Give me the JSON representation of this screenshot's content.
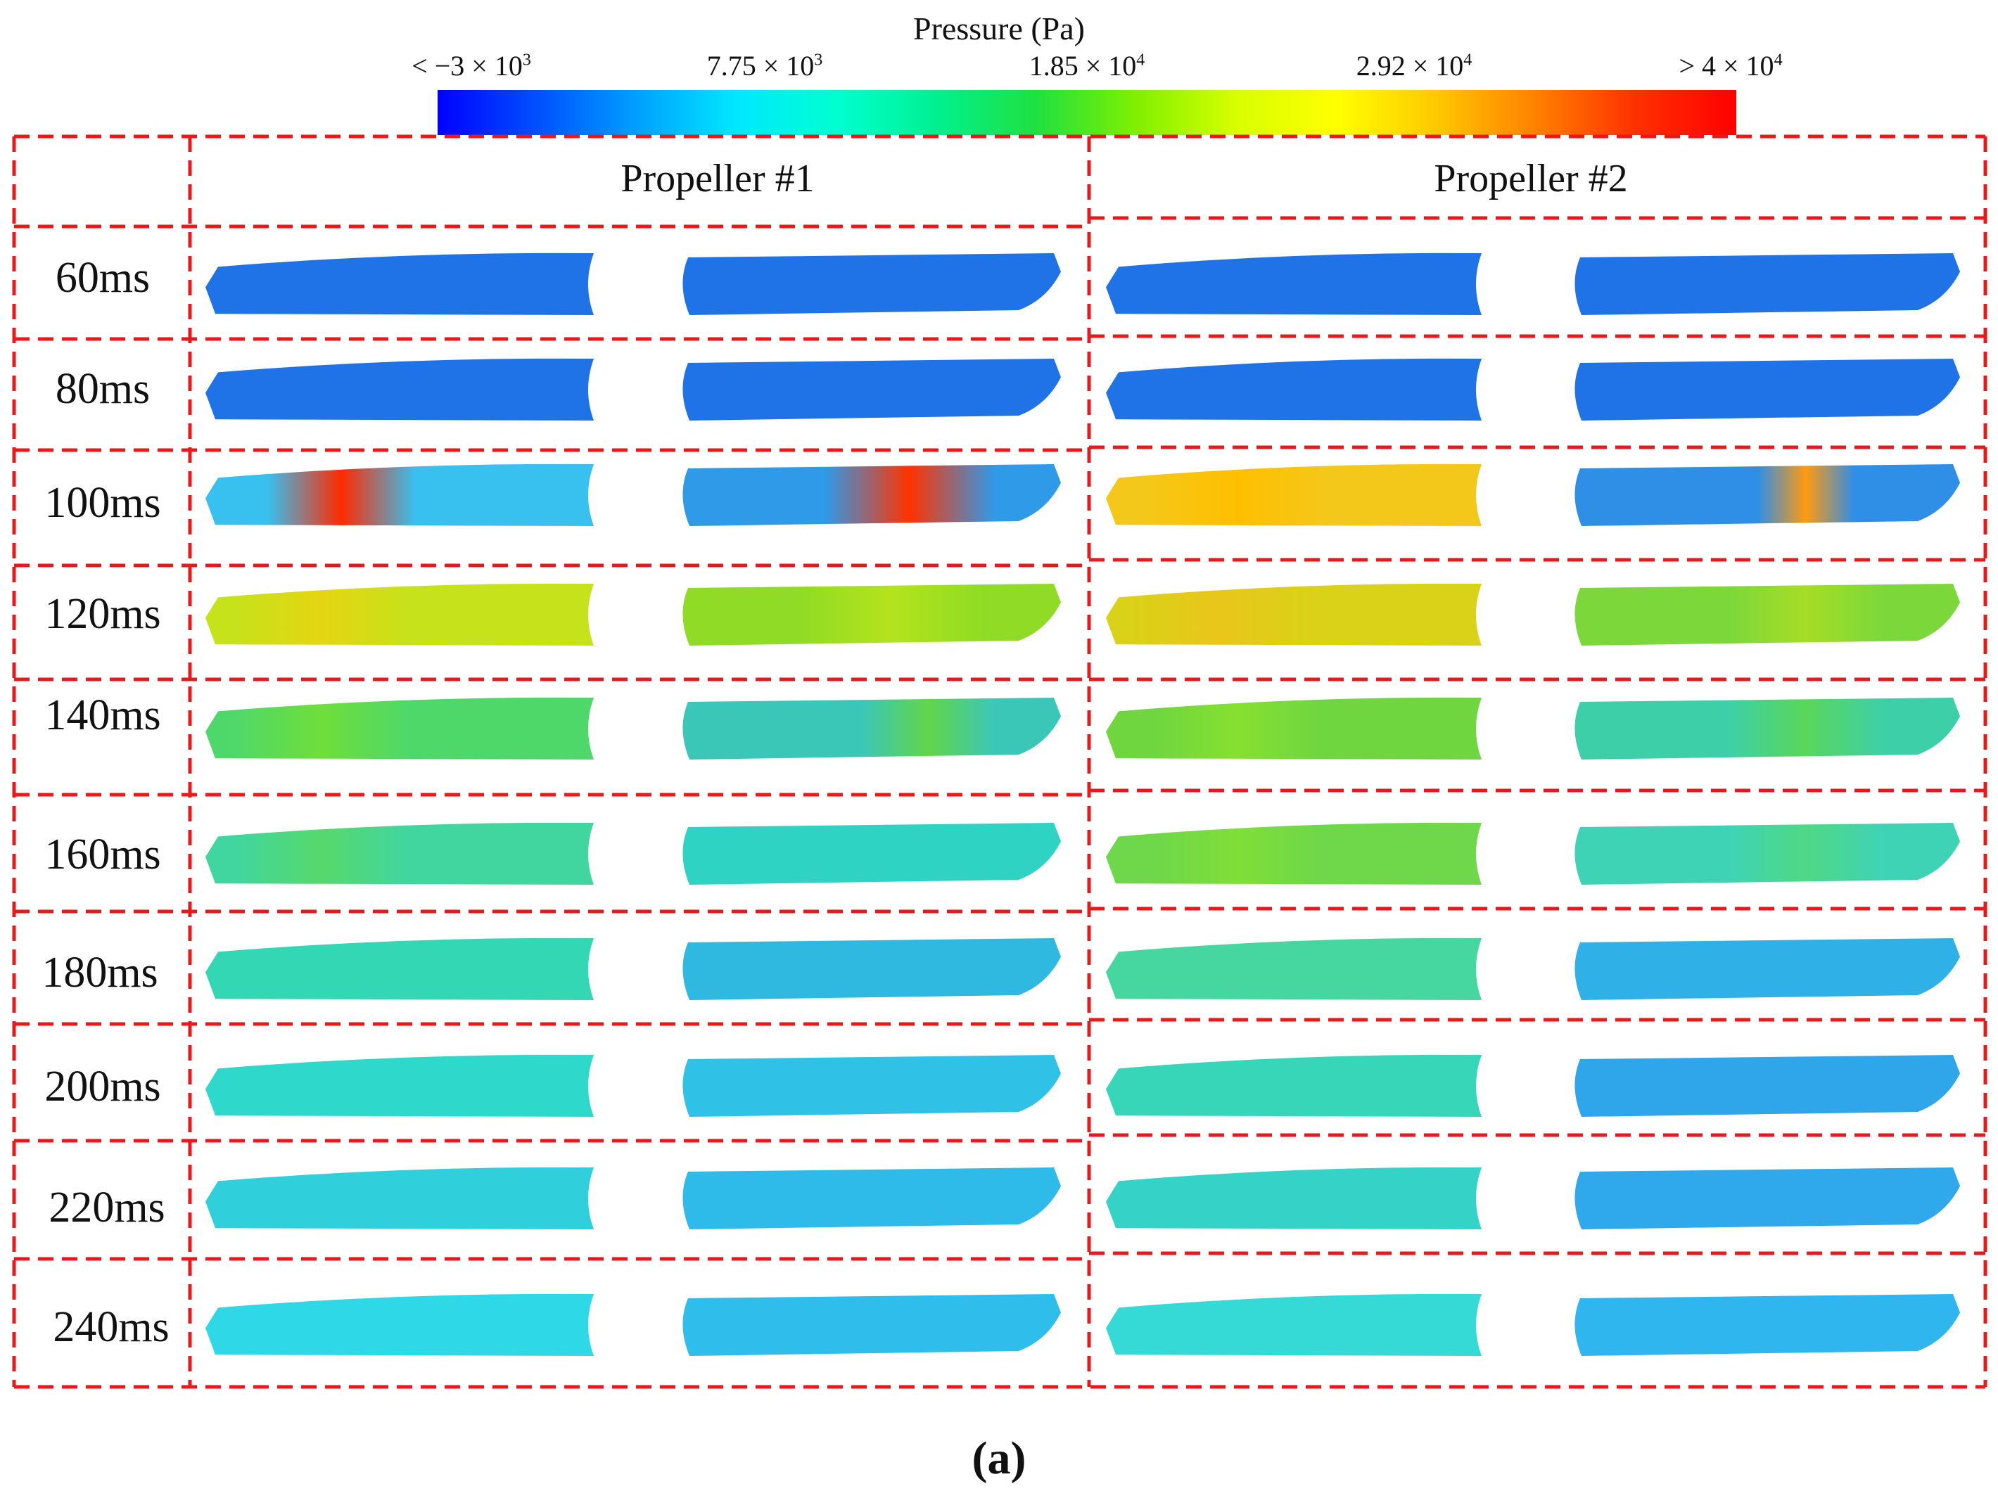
{
  "colorbar": {
    "title": "Pressure (Pa)",
    "ticks": [
      {
        "base": "< −3 × 10",
        "exp": "3"
      },
      {
        "base": "7.75 × 10",
        "exp": "3"
      },
      {
        "base": "1.85 × 10",
        "exp": "4"
      },
      {
        "base": "2.92 × 10",
        "exp": "4"
      },
      {
        "base": "> 4 × 10",
        "exp": "4"
      }
    ],
    "colors": [
      "#0000ff",
      "#0050ff",
      "#00a0ff",
      "#00e8ff",
      "#00ffd0",
      "#00f090",
      "#20e040",
      "#80f000",
      "#d8ff00",
      "#ffff00",
      "#ffc800",
      "#ff8000",
      "#ff3000",
      "#ff0000"
    ]
  },
  "headers": {
    "propeller1": "Propeller #1",
    "propeller2": "Propeller #2"
  },
  "rows": [
    "60ms",
    "80ms",
    "100ms",
    "120ms",
    "140ms",
    "160ms",
    "180ms",
    "200ms",
    "220ms",
    "240ms"
  ],
  "caption": "(a)",
  "grid_color": "#e8191b",
  "blade_fields": [
    {
      "p1a": "#1f73e6",
      "p1b": "#1f73e6",
      "p2a": "#1f73e6",
      "p2b": "#1f73e6",
      "hot": []
    },
    {
      "p1a": "#1f73e6",
      "p1b": "#1f73e6",
      "p2a": "#1f73e6",
      "p2b": "#1f73e6",
      "hot": []
    },
    {
      "p1a": "#38c0ef",
      "p1b": "#2f9ae8",
      "p2a": "#f4c81a",
      "p2b": "#2f8ee6",
      "hot": [
        {
          "blade": "p1a",
          "c": "#ff2a00",
          "f": 0.35,
          "w": 0.38
        },
        {
          "blade": "p1b",
          "c": "#ff3300",
          "f": 0.6,
          "w": 0.45
        },
        {
          "blade": "p2a",
          "c": "#ffbf00",
          "f": 0.35,
          "w": 0.5
        },
        {
          "blade": "p2b",
          "c": "#ff9a10",
          "f": 0.6,
          "w": 0.25
        }
      ]
    },
    {
      "p1a": "#c6e21a",
      "p1b": "#8fdb25",
      "p2a": "#d9d218",
      "p2b": "#7cd83a",
      "hot": [
        {
          "blade": "p1a",
          "c": "#e5d512",
          "f": 0.3,
          "w": 0.45
        },
        {
          "blade": "p1b",
          "c": "#b4e31c",
          "f": 0.55,
          "w": 0.5
        },
        {
          "blade": "p2a",
          "c": "#e9c61a",
          "f": 0.3,
          "w": 0.5
        },
        {
          "blade": "p2b",
          "c": "#a6dd26",
          "f": 0.6,
          "w": 0.4
        }
      ]
    },
    {
      "p1a": "#4fd86a",
      "p1b": "#3bc7b8",
      "p2a": "#6fd640",
      "p2b": "#3dd0a8",
      "hot": [
        {
          "blade": "p1a",
          "c": "#6ede3a",
          "f": 0.3,
          "w": 0.45
        },
        {
          "blade": "p1b",
          "c": "#62d548",
          "f": 0.65,
          "w": 0.35
        },
        {
          "blade": "p2a",
          "c": "#86e030",
          "f": 0.35,
          "w": 0.45
        },
        {
          "blade": "p2b",
          "c": "#5ad65a",
          "f": 0.6,
          "w": 0.4
        }
      ]
    },
    {
      "p1a": "#41d6a0",
      "p1b": "#2fd3c4",
      "p2a": "#6ed84a",
      "p2b": "#3fd3b6",
      "hot": [
        {
          "blade": "p1a",
          "c": "#57d86c",
          "f": 0.3,
          "w": 0.45
        },
        {
          "blade": "p2a",
          "c": "#7fde38",
          "f": 0.35,
          "w": 0.45
        },
        {
          "blade": "p2b",
          "c": "#4fd884",
          "f": 0.6,
          "w": 0.4
        }
      ]
    },
    {
      "p1a": "#34d7b4",
      "p1b": "#2fb8e0",
      "p2a": "#46d6a0",
      "p2b": "#2fb0e6",
      "hot": []
    },
    {
      "p1a": "#2ed9cc",
      "p1b": "#2fc2e6",
      "p2a": "#37d6b8",
      "p2b": "#2fa6ea",
      "hot": []
    },
    {
      "p1a": "#2fd0dc",
      "p1b": "#2fbbea",
      "p2a": "#35d2c8",
      "p2b": "#2fa8ec",
      "hot": []
    },
    {
      "p1a": "#2fd8e6",
      "p1b": "#2fbdec",
      "p2a": "#35d9d6",
      "p2b": "#2fb6ee",
      "hot": []
    }
  ]
}
